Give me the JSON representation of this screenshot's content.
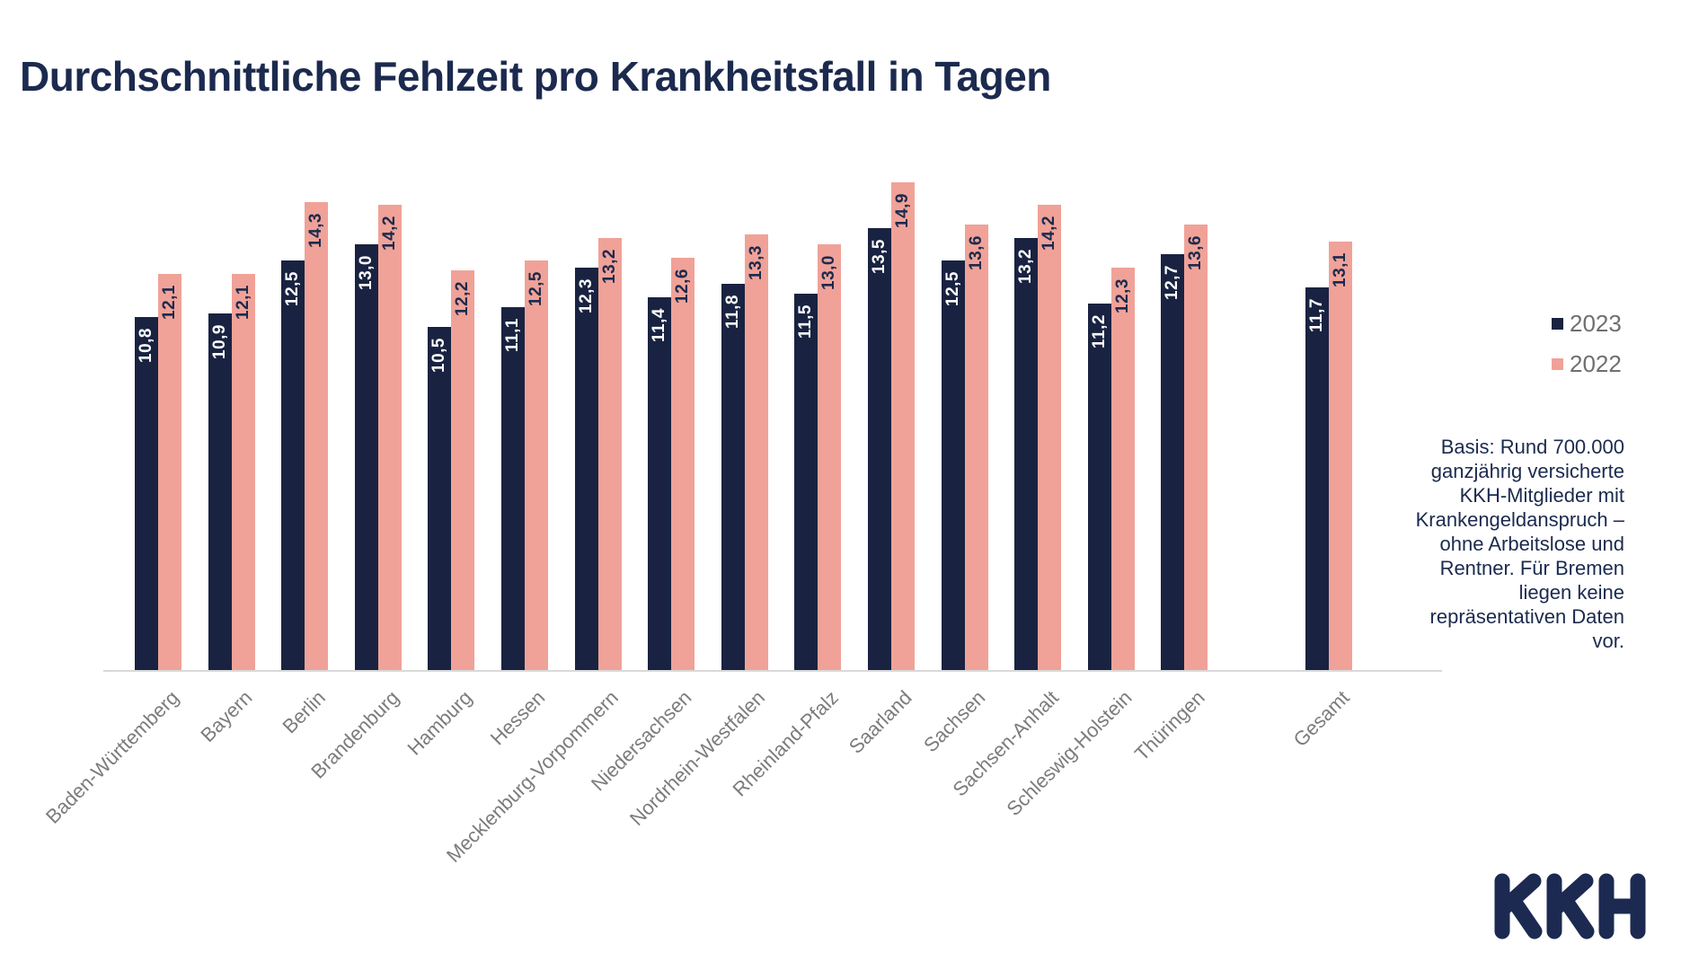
{
  "title": "Durchschnittliche Fehlzeit pro Krankheitsfall in Tagen",
  "legend": [
    {
      "label": "2023",
      "color": "#192341"
    },
    {
      "label": "2022",
      "color": "#F0A298"
    }
  ],
  "note": "Basis: Rund 700.000 ganzjährig versicherte KKH-Mitglieder mit Krankengeldanspruch – ohne Arbeitslose und Rentner. Für Bremen liegen keine repräsentativen Daten vor.",
  "logo_text": "KKH",
  "colors": {
    "navy": "#192341",
    "pink": "#F0A298",
    "title_text": "#1B2A4E",
    "axis_line": "#D9D9D9",
    "axis_label": "#7C7C7C",
    "legend_text": "#6F6F6F"
  },
  "chart_data": {
    "type": "bar",
    "title": "Durchschnittliche Fehlzeit pro Krankheitsfall in Tagen",
    "categories": [
      "Baden-Württemberg",
      "Bayern",
      "Berlin",
      "Brandenburg",
      "Hamburg",
      "Hessen",
      "Mecklenburg-Vorpommern",
      "Niedersachsen",
      "Nordrhein-Westfalen",
      "Rheinland-Pfalz",
      "Saarland",
      "Sachsen",
      "Sachsen-Anhalt",
      "Schleswig-Holstein",
      "Thüringen",
      "Gesamt"
    ],
    "series": [
      {
        "name": "2023",
        "values": [
          10.8,
          10.9,
          12.5,
          13.0,
          10.5,
          11.1,
          12.3,
          11.4,
          11.8,
          11.5,
          13.5,
          12.5,
          13.2,
          11.2,
          12.7,
          11.7
        ]
      },
      {
        "name": "2022",
        "values": [
          12.1,
          12.1,
          14.3,
          14.2,
          12.2,
          12.5,
          13.2,
          12.6,
          13.3,
          13.0,
          14.9,
          13.6,
          14.2,
          12.3,
          13.6,
          13.1
        ]
      }
    ],
    "value_label_format": "one decimal, comma as decimal separator, rotated 90° inside bar top",
    "xlabel": "",
    "ylabel": "",
    "ylim": [
      0,
      16
    ],
    "grid": false,
    "y_axis_visible": false,
    "legend_position": "right",
    "layout_note": "Gesamt group separated by a gap from the 15 state groups"
  }
}
